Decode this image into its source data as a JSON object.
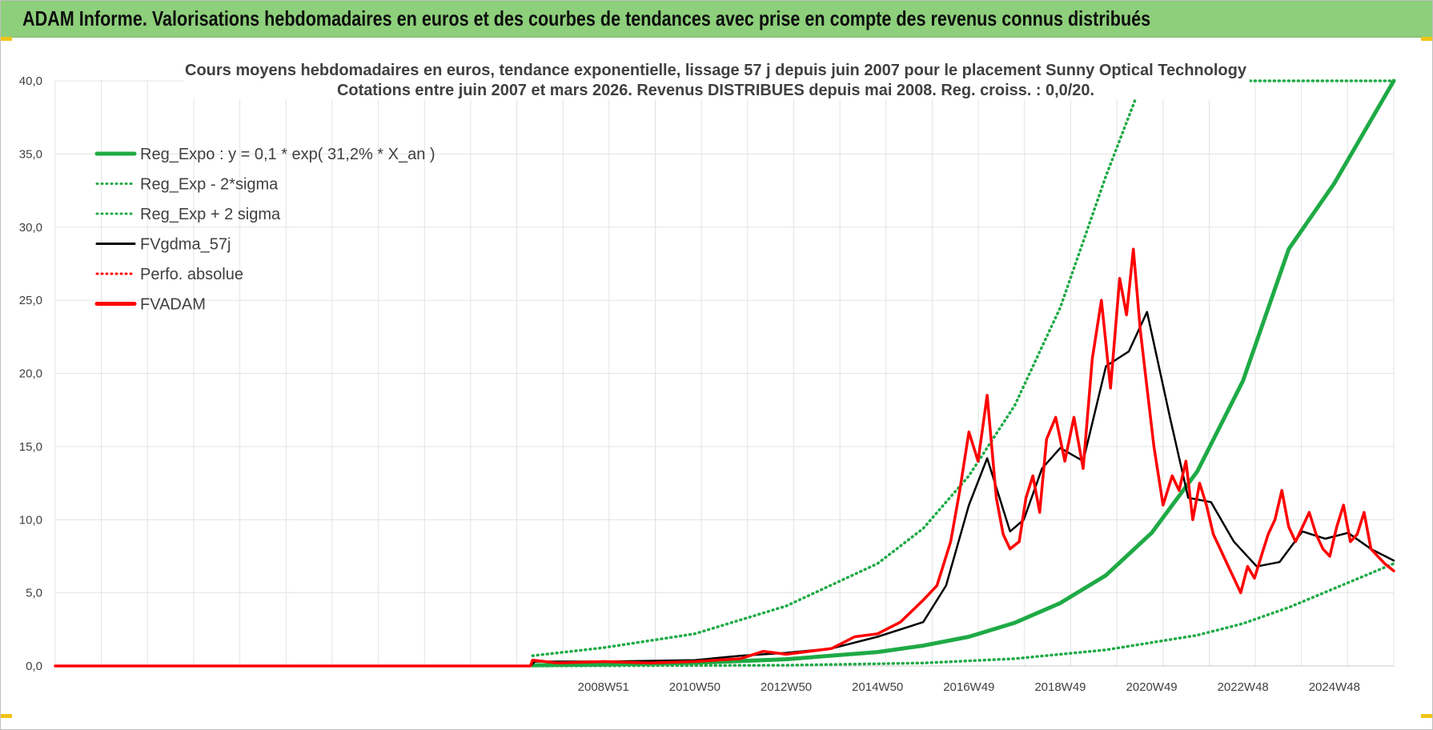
{
  "header": {
    "title": "ADAM Informe. Valorisations hebdomadaires en euros et des courbes de tendances avec prise en compte des revenus connus distribués"
  },
  "colors": {
    "banner": "#8dcf7b",
    "regression": "#1eaa45",
    "smoothed": "#000000",
    "adam": "#ff0000",
    "grid": "#e3e3e3"
  },
  "chart_data": {
    "type": "line",
    "title": "Cours moyens hebdomadaires en euros, tendance exponentielle, lissage 57 j depuis juin 2007 pour le placement Sunny Optical Technology",
    "subtitle": "Cotations entre juin 2007 et mars 2026. Revenus DISTRIBUES depuis mai 2008. Reg. croiss. : 0,0/20.",
    "y_ticks": [
      "0,0",
      "5,0",
      "10,0",
      "15,0",
      "20,0",
      "25,0",
      "30,0",
      "35,0",
      "40,0"
    ],
    "x_ticks": [
      "2008W51",
      "2010W50",
      "2012W50",
      "2014W50",
      "2016W49",
      "2018W49",
      "2020W49",
      "2022W48",
      "2024W48"
    ],
    "ylim": [
      0,
      40
    ],
    "xlim": [
      1997.0,
      2026.3
    ],
    "grid": true,
    "legend_position": "top-left",
    "legend": [
      {
        "label": "Reg_Expo : y = 0,1 * exp( 31,2% *  X_an )",
        "style": "solid-thick",
        "color": "#1eaa45"
      },
      {
        "label": "Reg_Exp - 2*sigma",
        "style": "dotted",
        "color": "#1eaa45"
      },
      {
        "label": "Reg_Exp + 2 sigma",
        "style": "dotted",
        "color": "#1eaa45"
      },
      {
        "label": "FVgdma_57j",
        "style": "solid",
        "color": "#000000"
      },
      {
        "label": "Perfo. absolue",
        "style": "dotted",
        "color": "#ff0000"
      },
      {
        "label": "FVADAM",
        "style": "solid-thick",
        "color": "#ff0000"
      }
    ],
    "series": [
      {
        "name": "Reg_Expo : y = 0,1 * exp( 31,2% *  X_an )",
        "x": [
          2007.45,
          2009,
          2011,
          2013,
          2015,
          2016,
          2017,
          2018,
          2019,
          2020,
          2021,
          2022,
          2023,
          2024,
          2025,
          2026.3
        ],
        "y": [
          0.05,
          0.1,
          0.22,
          0.46,
          0.95,
          1.39,
          2.0,
          2.95,
          4.3,
          6.2,
          9.1,
          13.3,
          19.5,
          28.5,
          33.0,
          40.0
        ]
      },
      {
        "name": "Reg_Exp + 2 sigma",
        "x": [
          2007.45,
          2009,
          2011,
          2013,
          2015,
          2016,
          2017,
          2018,
          2019,
          2020,
          2020.8,
          2026.3
        ],
        "y": [
          0.7,
          1.25,
          2.2,
          4.1,
          7.0,
          9.4,
          13.0,
          17.8,
          24.5,
          33.5,
          40.0,
          40.0
        ]
      },
      {
        "name": "Reg_Exp - 2*sigma",
        "x": [
          2007.45,
          2013,
          2016,
          2018,
          2020,
          2022,
          2023,
          2024,
          2025,
          2026.3
        ],
        "y": [
          0.0,
          0.05,
          0.2,
          0.5,
          1.1,
          2.1,
          2.9,
          4.0,
          5.3,
          7.0
        ]
      },
      {
        "name": "FVgdma_57j",
        "x": [
          1997.0,
          2007.4,
          2007.5,
          2009,
          2011,
          2012,
          2013,
          2014,
          2015,
          2016,
          2016.5,
          2017,
          2017.4,
          2017.9,
          2018.2,
          2018.6,
          2019.0,
          2019.5,
          2020.0,
          2020.5,
          2020.9,
          2021.4,
          2021.8,
          2022.3,
          2022.8,
          2023.3,
          2023.8,
          2024.3,
          2024.8,
          2025.3,
          2025.8,
          2026.3
        ],
        "y": [
          0.0,
          0.0,
          0.3,
          0.3,
          0.4,
          0.7,
          0.9,
          1.2,
          2.0,
          3.0,
          5.5,
          11.0,
          14.2,
          9.2,
          10.0,
          13.5,
          14.9,
          14.0,
          20.5,
          21.5,
          24.2,
          17.0,
          11.5,
          11.2,
          8.5,
          6.8,
          7.1,
          9.2,
          8.7,
          9.1,
          8.0,
          7.2
        ]
      },
      {
        "name": "FVADAM",
        "x": [
          1997.0,
          2007.4,
          2007.45,
          2008,
          2009,
          2010,
          2011,
          2012,
          2012.5,
          2013,
          2014,
          2014.5,
          2015,
          2015.5,
          2016,
          2016.3,
          2016.6,
          2016.8,
          2017.0,
          2017.2,
          2017.4,
          2017.6,
          2017.75,
          2017.9,
          2018.1,
          2018.25,
          2018.4,
          2018.55,
          2018.7,
          2018.9,
          2019.1,
          2019.3,
          2019.5,
          2019.7,
          2019.9,
          2020.1,
          2020.3,
          2020.45,
          2020.6,
          2020.75,
          2020.9,
          2021.05,
          2021.25,
          2021.45,
          2021.6,
          2021.75,
          2021.9,
          2022.05,
          2022.2,
          2022.35,
          2022.5,
          2022.65,
          2022.8,
          2022.95,
          2023.1,
          2023.25,
          2023.4,
          2023.55,
          2023.7,
          2023.85,
          2024.0,
          2024.15,
          2024.3,
          2024.45,
          2024.6,
          2024.75,
          2024.9,
          2025.05,
          2025.2,
          2025.35,
          2025.5,
          2025.65,
          2025.8,
          2025.95,
          2026.1,
          2026.3
        ],
        "y": [
          0.0,
          0.0,
          0.4,
          0.2,
          0.3,
          0.2,
          0.3,
          0.5,
          1.0,
          0.8,
          1.2,
          2.0,
          2.2,
          3.0,
          4.5,
          5.5,
          8.5,
          12.0,
          16.0,
          14.0,
          18.5,
          11.5,
          9.0,
          8.0,
          8.5,
          11.5,
          13.0,
          10.5,
          15.5,
          17.0,
          14.0,
          17.0,
          13.5,
          21.0,
          25.0,
          19.0,
          26.5,
          24.0,
          28.5,
          23.0,
          19.0,
          15.0,
          11.0,
          13.0,
          12.0,
          14.0,
          10.0,
          12.5,
          11.0,
          9.0,
          8.0,
          7.0,
          6.0,
          5.0,
          6.8,
          6.0,
          7.5,
          9.0,
          10.0,
          12.0,
          9.5,
          8.5,
          9.5,
          10.5,
          9.0,
          8.0,
          7.5,
          9.5,
          11.0,
          8.5,
          9.0,
          10.5,
          8.0,
          7.5,
          7.0,
          6.5
        ]
      }
    ]
  }
}
